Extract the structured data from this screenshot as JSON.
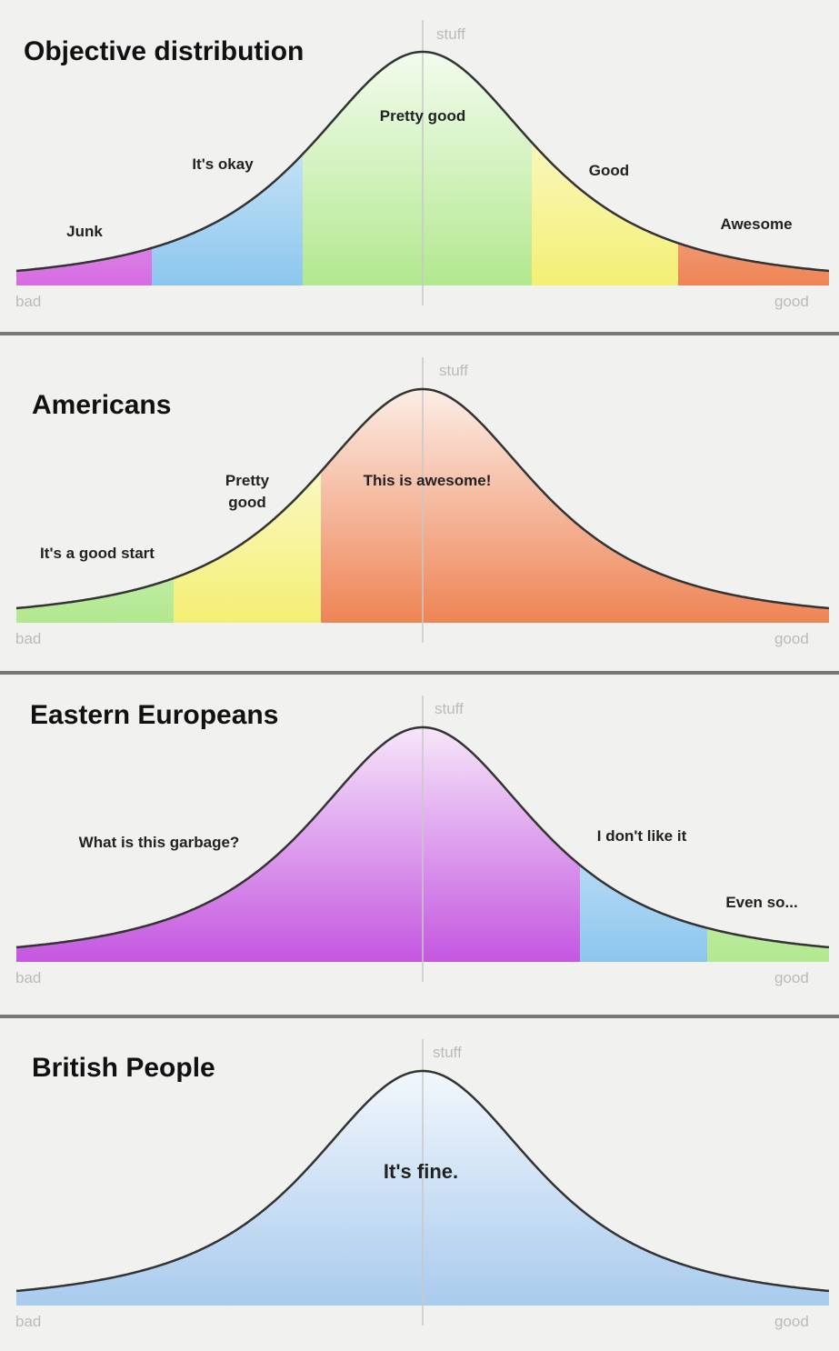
{
  "panels": [
    {
      "title": "Objective distribution",
      "axis": {
        "y": "stuff",
        "x_low": "bad",
        "x_high": "good"
      },
      "regions": [
        {
          "label": "Junk",
          "color": "#d66be2"
        },
        {
          "label": "It's okay",
          "color": "#8cc6ee"
        },
        {
          "label": "Pretty good",
          "color": "#b2e88f"
        },
        {
          "label": "Good",
          "color": "#f4ef74"
        },
        {
          "label": "Awesome",
          "color": "#ee8455"
        }
      ]
    },
    {
      "title": "Americans",
      "axis": {
        "y": "stuff",
        "x_low": "bad",
        "x_high": "good"
      },
      "regions": [
        {
          "label": "It's a good start",
          "color": "#b2e88f"
        },
        {
          "label": "Pretty good",
          "color": "#f4ef74"
        },
        {
          "label": "This is awesome!",
          "color": "#ee8455"
        }
      ]
    },
    {
      "title": "Eastern Europeans",
      "axis": {
        "y": "stuff",
        "x_low": "bad",
        "x_high": "good"
      },
      "regions": [
        {
          "label": "What is this garbage?",
          "color": "#c457e0"
        },
        {
          "label": "I don't like it",
          "color": "#8cc6ee"
        },
        {
          "label": "Even so...",
          "color": "#b2e88f"
        }
      ]
    },
    {
      "title": "British People",
      "axis": {
        "y": "stuff",
        "x_low": "bad",
        "x_high": "good"
      },
      "regions": [
        {
          "label": "It's fine.",
          "color": "#a9cbee"
        }
      ]
    }
  ]
}
